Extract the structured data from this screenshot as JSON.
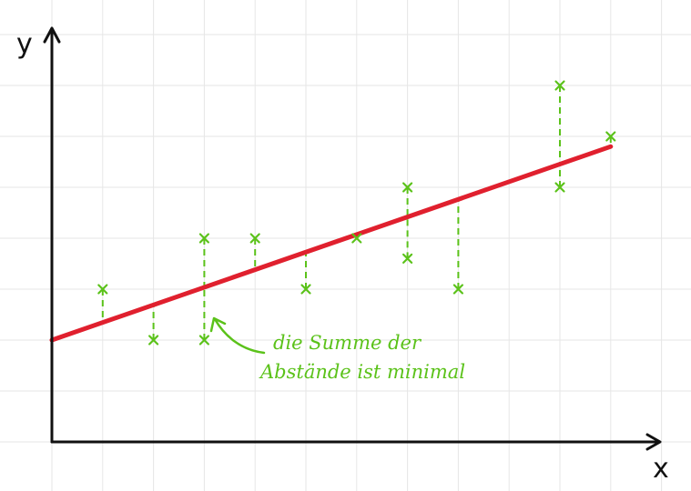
{
  "chart_data": {
    "type": "scatter",
    "x_axis_label": "x",
    "y_axis_label": "y",
    "xlim": [
      0,
      12
    ],
    "ylim": [
      0,
      8
    ],
    "points": [
      {
        "x": 1,
        "y": 3
      },
      {
        "x": 2,
        "y": 2
      },
      {
        "x": 3,
        "y": 4
      },
      {
        "x": 3,
        "y": 2
      },
      {
        "x": 4,
        "y": 4
      },
      {
        "x": 5,
        "y": 3
      },
      {
        "x": 6,
        "y": 4
      },
      {
        "x": 7,
        "y": 5
      },
      {
        "x": 7,
        "y": 3.6
      },
      {
        "x": 8,
        "y": 3
      },
      {
        "x": 10,
        "y": 7
      },
      {
        "x": 10,
        "y": 5
      },
      {
        "x": 11,
        "y": 6
      }
    ],
    "regression_line": {
      "x_start": 0,
      "y_start": 2,
      "x_end": 11,
      "y_end": 5.8
    },
    "annotation_lines": [
      "die Summe der",
      "Abstände ist minimal"
    ],
    "colors": {
      "line": "#e0202e",
      "points": "#5bc21a",
      "axis": "#111111",
      "grid": "#e6e6e6"
    }
  }
}
